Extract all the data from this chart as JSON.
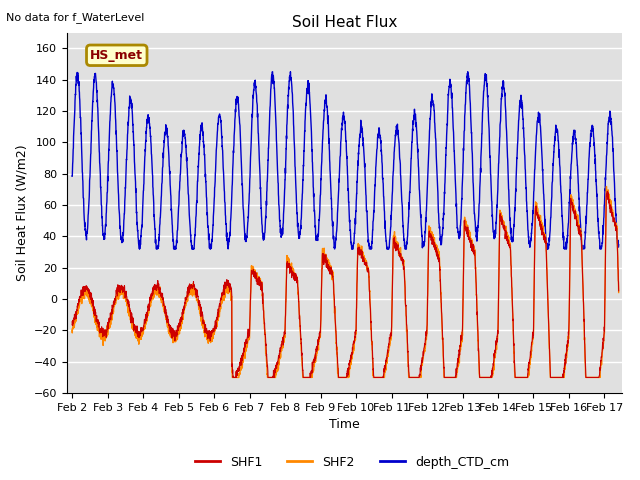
{
  "title": "Soil Heat Flux",
  "subtitle": "No data for f_WaterLevel",
  "ylabel": "Soil Heat Flux (W/m2)",
  "xlabel": "Time",
  "ylim": [
    -60,
    170
  ],
  "yticks": [
    -60,
    -40,
    -20,
    0,
    20,
    40,
    60,
    80,
    100,
    120,
    140,
    160
  ],
  "xlim_start": 1.0,
  "xlim_end": 16.5,
  "xtick_labels": [
    "Feb 2",
    "Feb 3",
    "Feb 4",
    "Feb 5",
    "Feb 6",
    "Feb 7",
    "Feb 8",
    "Feb 9",
    "Feb 10",
    "Feb 11",
    "Feb 12",
    "Feb 13",
    "Feb 14",
    "Feb 15",
    "Feb 16",
    "Feb 17"
  ],
  "xtick_positions": [
    1,
    2,
    3,
    4,
    5,
    6,
    7,
    8,
    9,
    10,
    11,
    12,
    13,
    14,
    15,
    16
  ],
  "colors": {
    "SHF1": "#cc0000",
    "SHF2": "#ff8800",
    "depth_CTD_cm": "#0000cc",
    "background": "#e0e0e0",
    "grid": "#ffffff",
    "legend_box_fill": "#ffffcc",
    "legend_box_edge": "#aa8800"
  },
  "legend_label": "HS_met",
  "legend_entries": [
    "SHF1",
    "SHF2",
    "depth_CTD_cm"
  ],
  "figsize": [
    6.4,
    4.8
  ],
  "dpi": 100
}
